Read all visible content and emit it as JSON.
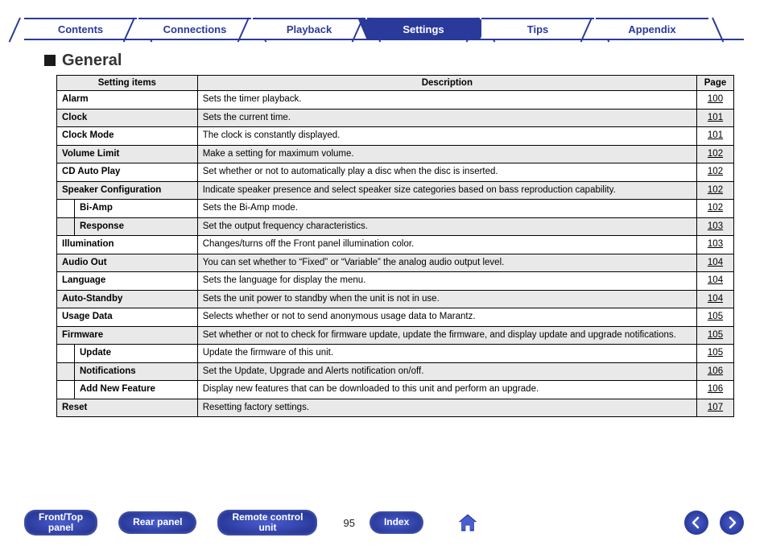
{
  "colors": {
    "brand": "#2a3a9a",
    "brand_light": "#4a5dd0",
    "header_bg": "#e9e9e9",
    "text": "#000000"
  },
  "tabs": [
    {
      "label": "Contents",
      "active": false
    },
    {
      "label": "Connections",
      "active": false
    },
    {
      "label": "Playback",
      "active": false
    },
    {
      "label": "Settings",
      "active": true
    },
    {
      "label": "Tips",
      "active": false
    },
    {
      "label": "Appendix",
      "active": false
    }
  ],
  "section_title": "General",
  "table": {
    "columns": [
      "Setting items",
      "Description",
      "Page"
    ],
    "rows": [
      {
        "level": 0,
        "shade": false,
        "name": "Alarm",
        "desc": "Sets the timer playback.",
        "page": "100"
      },
      {
        "level": 0,
        "shade": true,
        "name": "Clock",
        "desc": "Sets the current time.",
        "page": "101"
      },
      {
        "level": 0,
        "shade": false,
        "name": "Clock Mode",
        "desc": "The clock is constantly displayed.",
        "page": "101"
      },
      {
        "level": 0,
        "shade": true,
        "name": "Volume Limit",
        "desc": "Make a setting for maximum volume.",
        "page": "102"
      },
      {
        "level": 0,
        "shade": false,
        "name": "CD Auto Play",
        "desc": "Set whether or not to automatically play a disc when the disc is inserted.",
        "page": "102"
      },
      {
        "level": 0,
        "shade": true,
        "name": "Speaker Configuration",
        "desc": "Indicate speaker presence and select speaker size categories based on bass reproduction capability.",
        "page": "102"
      },
      {
        "level": 1,
        "shade": false,
        "name": "Bi-Amp",
        "desc": "Sets the Bi-Amp mode.",
        "page": "102"
      },
      {
        "level": 1,
        "shade": true,
        "name": "Response",
        "desc": "Set the output frequency characteristics.",
        "page": "103"
      },
      {
        "level": 0,
        "shade": false,
        "name": "Illumination",
        "desc": "Changes/turns off the Front panel illumination color.",
        "page": "103"
      },
      {
        "level": 0,
        "shade": true,
        "name": "Audio Out",
        "desc": "You can set whether to “Fixed” or “Variable” the analog audio output level.",
        "page": "104"
      },
      {
        "level": 0,
        "shade": false,
        "name": "Language",
        "desc": "Sets the language for display the menu.",
        "page": "104"
      },
      {
        "level": 0,
        "shade": true,
        "name": "Auto-Standby",
        "desc": "Sets the unit power to standby when the unit is not in use.",
        "page": "104"
      },
      {
        "level": 0,
        "shade": false,
        "name": "Usage Data",
        "desc": "Selects whether or not to send anonymous usage data to Marantz.",
        "page": "105"
      },
      {
        "level": 0,
        "shade": true,
        "name": "Firmware",
        "desc": "Set whether or not to check for firmware update, update the firmware, and display update and upgrade notifications.",
        "page": "105"
      },
      {
        "level": 1,
        "shade": false,
        "name": "Update",
        "desc": "Update the firmware of this unit.",
        "page": "105"
      },
      {
        "level": 1,
        "shade": true,
        "name": "Notifications",
        "desc": "Set the Update, Upgrade and Alerts notification on/off.",
        "page": "106"
      },
      {
        "level": 1,
        "shade": false,
        "name": "Add New Feature",
        "desc": "Display new features that can be downloaded to this unit and perform an upgrade.",
        "page": "106"
      },
      {
        "level": 0,
        "shade": true,
        "name": "Reset",
        "desc": "Resetting factory settings.",
        "page": "107"
      }
    ]
  },
  "bottom": {
    "buttons": [
      {
        "label": "Front/Top\npanel"
      },
      {
        "label": "Rear panel"
      },
      {
        "label": "Remote control\nunit"
      }
    ],
    "page_number": "95",
    "index_label": "Index"
  }
}
